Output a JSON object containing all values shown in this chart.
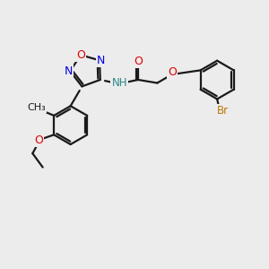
{
  "bg_color": "#ececec",
  "bond_color": "#1a1a1a",
  "lw": 1.6,
  "atom_colors": {
    "O": "#e00000",
    "N": "#0000dd",
    "H": "#2a8888",
    "Br": "#b87800",
    "C": "#1a1a1a"
  },
  "fs": 8.5
}
